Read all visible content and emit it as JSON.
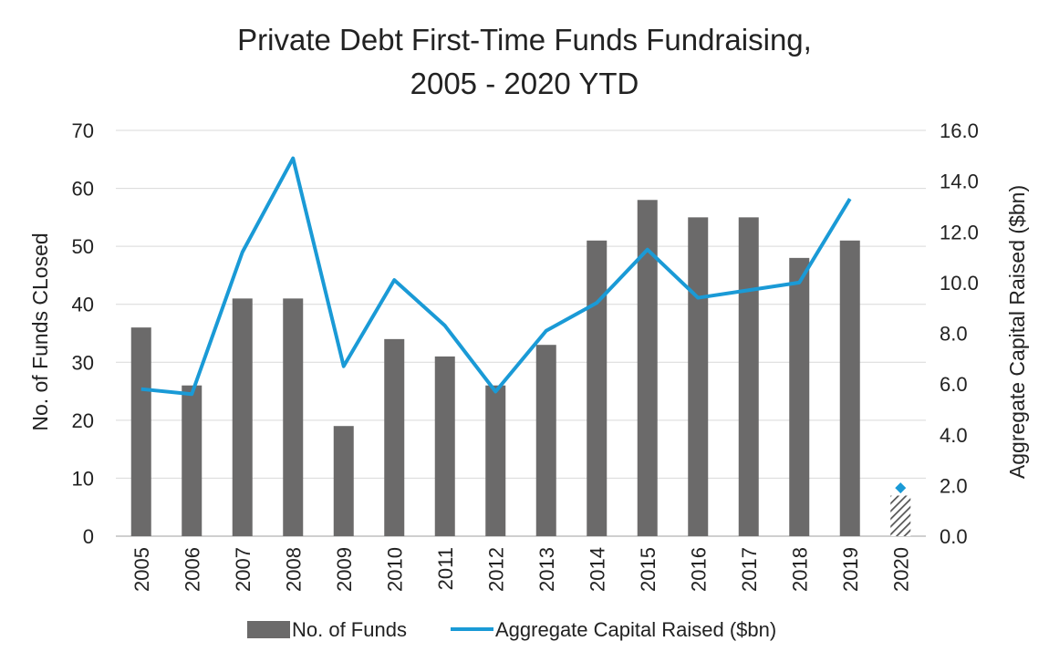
{
  "chart_data": {
    "type": "bar",
    "title_line1": "Private Debt First-Time Funds Fundraising,",
    "title_line2": "2005 - 2020 YTD",
    "categories": [
      "2005",
      "2006",
      "2007",
      "2008",
      "2009",
      "2010",
      "2011",
      "2012",
      "2013",
      "2014",
      "2015",
      "2016",
      "2017",
      "2018",
      "2019",
      "2020"
    ],
    "series": [
      {
        "name": "No. of Funds",
        "type": "bar",
        "axis": "left",
        "values": [
          36,
          26,
          41,
          41,
          19,
          34,
          31,
          26,
          33,
          51,
          58,
          55,
          55,
          48,
          51,
          7
        ],
        "color": "#6b6a6a",
        "hatched_last": true
      },
      {
        "name": "Aggregate Capital Raised ($bn)",
        "type": "line",
        "axis": "right",
        "values": [
          5.8,
          5.6,
          11.2,
          14.9,
          6.7,
          10.1,
          8.3,
          5.7,
          8.1,
          9.2,
          11.3,
          9.4,
          9.7,
          10.0,
          13.3,
          1.9
        ],
        "color": "#1a9ad6",
        "last_point_marker": "diamond"
      }
    ],
    "ylabel": "No. of Funds CLosed",
    "y2label": "Aggregate Capital Raised ($bn)",
    "ylim": [
      0,
      70
    ],
    "y2lim": [
      0,
      16
    ],
    "yticks": [
      "0",
      "10",
      "20",
      "30",
      "40",
      "50",
      "60",
      "70"
    ],
    "y2ticks": [
      "0.0",
      "2.0",
      "4.0",
      "6.0",
      "8.0",
      "10.0",
      "12.0",
      "14.0",
      "16.0"
    ],
    "legend_position": "bottom",
    "grid": "horizontal"
  }
}
